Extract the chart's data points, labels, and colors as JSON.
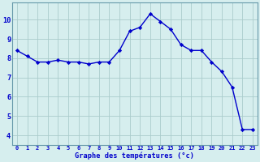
{
  "x": [
    0,
    1,
    2,
    3,
    4,
    5,
    6,
    7,
    8,
    9,
    10,
    11,
    12,
    13,
    14,
    15,
    16,
    17,
    18,
    19,
    20,
    21,
    22,
    23
  ],
  "y": [
    8.4,
    8.1,
    7.8,
    7.8,
    7.9,
    7.8,
    7.8,
    7.7,
    7.8,
    7.8,
    8.4,
    9.4,
    9.6,
    10.3,
    9.9,
    9.5,
    8.7,
    8.4,
    8.4,
    7.8,
    7.3,
    6.5,
    4.3,
    4.3
  ],
  "line_color": "#0000CC",
  "marker": "D",
  "marker_size": 2.2,
  "bg_color": "#d6eeee",
  "grid_color": "#aacccc",
  "axis_color": "#6699aa",
  "xlabel": "Graphe des températures (°c)",
  "tick_color": "#0000CC",
  "label_color": "#0000CC",
  "ylim": [
    3.5,
    10.9
  ],
  "yticks": [
    4,
    5,
    6,
    7,
    8,
    9,
    10
  ],
  "xlim": [
    -0.5,
    23.5
  ],
  "xticks": [
    0,
    1,
    2,
    3,
    4,
    5,
    6,
    7,
    8,
    9,
    10,
    11,
    12,
    13,
    14,
    15,
    16,
    17,
    18,
    19,
    20,
    21,
    22,
    23
  ],
  "linewidth": 1.0,
  "tick_fontsize": 5.0,
  "label_fontsize": 6.2,
  "ytick_fontsize": 6.2
}
